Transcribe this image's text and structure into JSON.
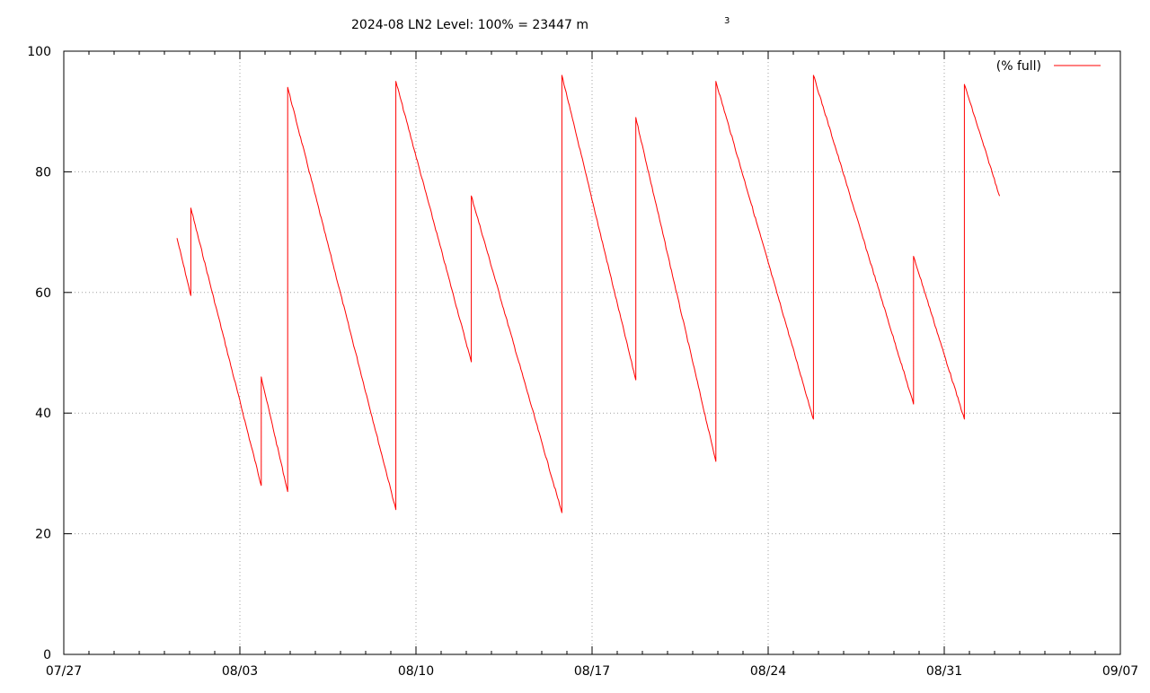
{
  "chart_data": {
    "type": "line",
    "title": "2024-08 LN2 Level: 100% = 23447 m",
    "title_superscript": "3",
    "xlabel": "",
    "ylabel": "",
    "xlim": [
      "2024-07-27",
      "2024-09-07"
    ],
    "ylim": [
      0,
      100
    ],
    "x_ticks": [
      "07/27",
      "08/03",
      "08/10",
      "08/17",
      "08/24",
      "08/31",
      "09/07"
    ],
    "y_ticks": [
      "0",
      "20",
      "40",
      "60",
      "80",
      "100"
    ],
    "x_tick_values": [
      "2024-07-27",
      "2024-08-03",
      "2024-08-10",
      "2024-08-17",
      "2024-08-24",
      "2024-08-31",
      "2024-09-07"
    ],
    "y_tick_values": [
      0,
      20,
      40,
      60,
      80,
      100
    ],
    "grid": true,
    "legend_position": "top-right",
    "series": [
      {
        "name": "(% full)",
        "color": "#ff0000",
        "points": [
          [
            "2024-07-31 12:00",
            69.0
          ],
          [
            "2024-08-01 01:12",
            59.5
          ],
          [
            "2024-08-01 01:12",
            74.0
          ],
          [
            "2024-08-03 20:24",
            28.0
          ],
          [
            "2024-08-03 20:24",
            46.0
          ],
          [
            "2024-08-04 21:36",
            27.0
          ],
          [
            "2024-08-04 21:36",
            94.0
          ],
          [
            "2024-08-09 04:48",
            24.0
          ],
          [
            "2024-08-09 04:48",
            95.0
          ],
          [
            "2024-08-12 04:48",
            48.5
          ],
          [
            "2024-08-12 04:48",
            76.0
          ],
          [
            "2024-08-15 19:12",
            23.5
          ],
          [
            "2024-08-15 19:12",
            96.0
          ],
          [
            "2024-08-18 17:44",
            45.5
          ],
          [
            "2024-08-18 17:44",
            89.0
          ],
          [
            "2024-08-21 22:05",
            32.0
          ],
          [
            "2024-08-21 22:05",
            95.0
          ],
          [
            "2024-08-25 19:12",
            39.0
          ],
          [
            "2024-08-25 19:12",
            96.0
          ],
          [
            "2024-08-29 18:43",
            41.5
          ],
          [
            "2024-08-29 18:43",
            66.0
          ],
          [
            "2024-08-31 19:12",
            39.0
          ],
          [
            "2024-08-31 19:12",
            94.5
          ],
          [
            "2024-09-02 04:48",
            76.0
          ]
        ]
      }
    ]
  }
}
